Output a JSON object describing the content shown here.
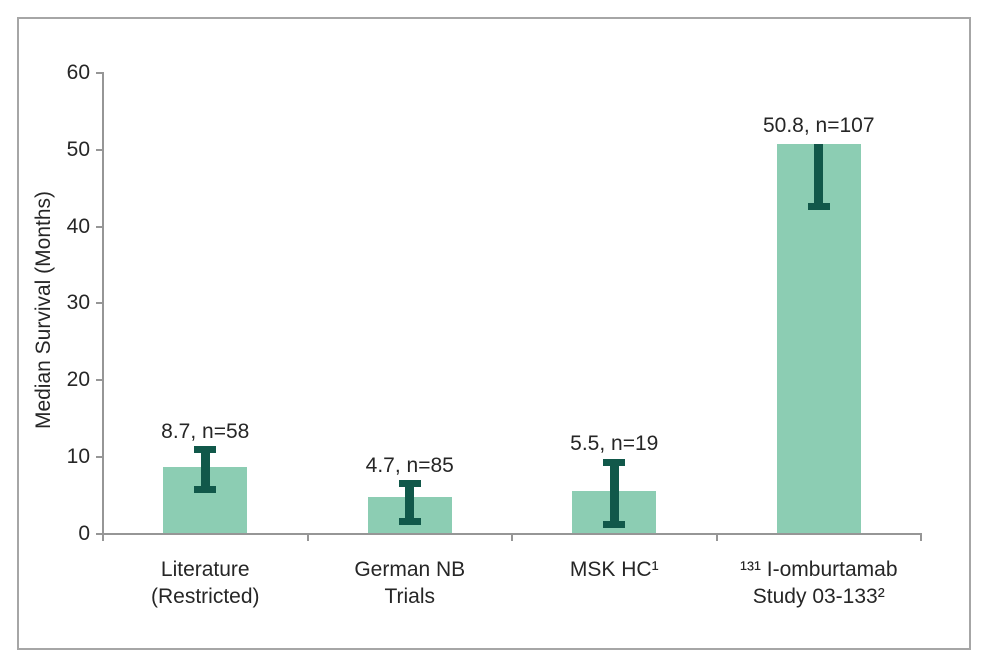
{
  "chart_data": {
    "type": "bar",
    "title": "",
    "xlabel": "",
    "ylabel": "Median Survival (Months)",
    "ylim": [
      0,
      60
    ],
    "yticks": [
      0,
      10,
      20,
      30,
      40,
      50,
      60
    ],
    "grid": false,
    "legend": false,
    "categories": [
      "Literature (Restricted)",
      "German NB Trials",
      "MSK HC¹",
      "¹³¹ I-omburtamab Study 03-133²"
    ],
    "category_label_lines": [
      [
        "Literature",
        "(Restricted)"
      ],
      [
        "German NB",
        "Trials"
      ],
      [
        "MSK HC¹"
      ],
      [
        "¹³¹ I-omburtamab",
        "Study 03-133²"
      ]
    ],
    "values": [
      8.7,
      4.7,
      5.5,
      50.8
    ],
    "sample_sizes": [
      58,
      85,
      19,
      107
    ],
    "data_labels": [
      "8.7, n=58",
      "4.7, n=85",
      "5.5, n=19",
      "50.8, n=107"
    ],
    "error_bars": [
      {
        "hi": 10.9,
        "lo": 5.7,
        "cap_top": true,
        "cap_bottom": true
      },
      {
        "hi": 6.5,
        "lo": 1.5,
        "cap_top": true,
        "cap_bottom": true
      },
      {
        "hi": 9.3,
        "lo": 1.2,
        "cap_top": true,
        "cap_bottom": true
      },
      {
        "hi": 50.8,
        "lo": 42.6,
        "cap_top": false,
        "cap_bottom": true
      }
    ],
    "colors": {
      "bar_fill": "#8CCDB3",
      "error_bar": "#11584A",
      "axis_line": "#969696",
      "text": "#262626",
      "frame_border": "#A6A6A6"
    }
  }
}
